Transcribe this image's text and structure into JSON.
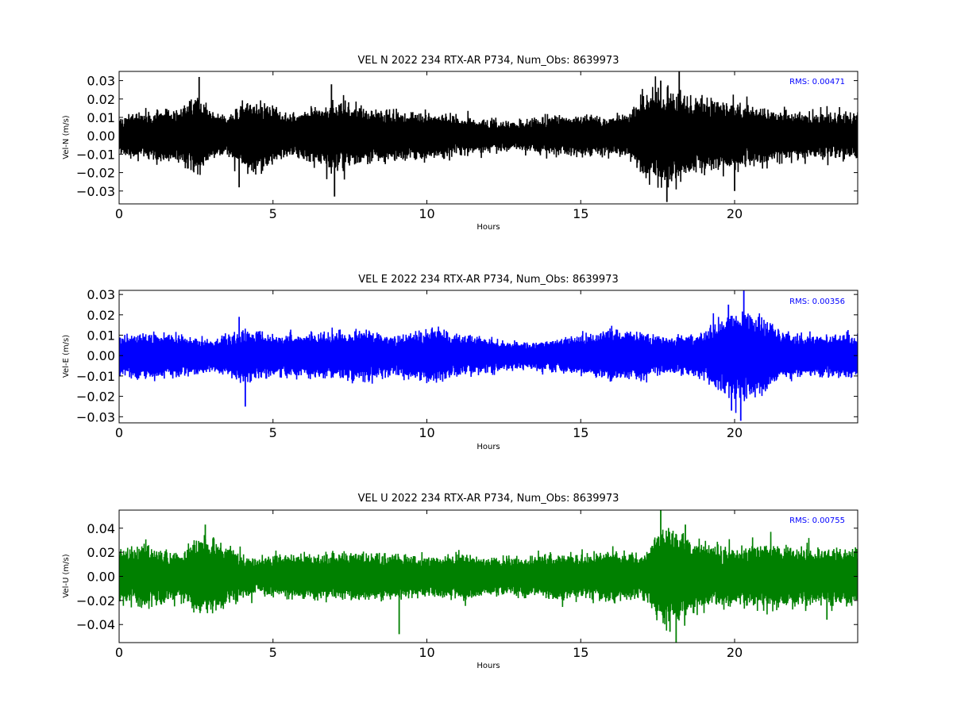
{
  "chart_data": [
    {
      "type": "line",
      "title": "VEL N 2022 234 RTX-AR  P734, Num_Obs: 8639973",
      "xlabel": "Hours",
      "ylabel": "Vel-N (m/s)",
      "xlim": [
        0,
        24
      ],
      "ylim": [
        -0.037,
        0.035
      ],
      "x_ticks": [
        0,
        5,
        10,
        15,
        20
      ],
      "x_tick_labels": [
        "0",
        "5",
        "10",
        "15",
        "20"
      ],
      "y_ticks": [
        -0.03,
        -0.02,
        -0.01,
        0.0,
        0.01,
        0.02,
        0.03
      ],
      "y_tick_labels": [
        "−0.03",
        "−0.02",
        "−0.01",
        "0.00",
        "0.01",
        "0.02",
        "0.03"
      ],
      "color": "#000000",
      "annotation": "RMS:  0.00471",
      "rms": 0.00471,
      "envelope": {
        "hours": [
          0,
          1,
          2,
          2.5,
          3,
          3.5,
          4,
          4.5,
          5,
          5.5,
          6,
          7,
          8,
          9,
          10,
          11,
          12,
          13,
          14,
          15,
          16,
          16.5,
          17,
          17.5,
          18,
          18.5,
          19,
          19.5,
          20,
          21,
          22,
          23,
          24
        ],
        "amplitude": [
          0.011,
          0.014,
          0.016,
          0.024,
          0.014,
          0.011,
          0.019,
          0.021,
          0.017,
          0.012,
          0.014,
          0.02,
          0.015,
          0.014,
          0.013,
          0.011,
          0.009,
          0.008,
          0.012,
          0.011,
          0.011,
          0.013,
          0.022,
          0.028,
          0.028,
          0.023,
          0.02,
          0.019,
          0.019,
          0.015,
          0.013,
          0.013,
          0.013
        ],
        "spikes": [
          [
            2.6,
            0.032
          ],
          [
            7.0,
            -0.033
          ],
          [
            3.9,
            -0.028
          ],
          [
            6.9,
            0.028
          ],
          [
            17.8,
            -0.036
          ],
          [
            18.2,
            0.035
          ],
          [
            20.0,
            -0.03
          ],
          [
            17.6,
            0.03
          ]
        ]
      }
    },
    {
      "type": "line",
      "title": "VEL E 2022 234 RTX-AR  P734, Num_Obs: 8639973",
      "xlabel": "Hours",
      "ylabel": "Vel-E (m/s)",
      "xlim": [
        0,
        24
      ],
      "ylim": [
        -0.033,
        0.032
      ],
      "x_ticks": [
        0,
        5,
        10,
        15,
        20
      ],
      "x_tick_labels": [
        "0",
        "5",
        "10",
        "15",
        "20"
      ],
      "y_ticks": [
        -0.03,
        -0.02,
        -0.01,
        0.0,
        0.01,
        0.02,
        0.03
      ],
      "y_tick_labels": [
        "−0.03",
        "−0.02",
        "−0.01",
        "0.00",
        "0.01",
        "0.02",
        "0.03"
      ],
      "color": "#0000ff",
      "annotation": "RMS:  0.00356",
      "rms": 0.00356,
      "envelope": {
        "hours": [
          0,
          1,
          2,
          3,
          4,
          5,
          6,
          7,
          8,
          9,
          10,
          11,
          12,
          13,
          14,
          15,
          16,
          17,
          18,
          19,
          19.6,
          20.2,
          20.8,
          21.5,
          22,
          23,
          24
        ],
        "amplitude": [
          0.011,
          0.012,
          0.011,
          0.008,
          0.013,
          0.011,
          0.011,
          0.012,
          0.013,
          0.01,
          0.014,
          0.011,
          0.009,
          0.007,
          0.008,
          0.01,
          0.014,
          0.012,
          0.009,
          0.011,
          0.021,
          0.023,
          0.019,
          0.013,
          0.011,
          0.011,
          0.011
        ],
        "spikes": [
          [
            4.1,
            -0.025
          ],
          [
            3.9,
            0.019
          ],
          [
            20.3,
            0.032
          ],
          [
            20.2,
            -0.032
          ],
          [
            19.8,
            0.025
          ],
          [
            19.9,
            -0.027
          ]
        ]
      }
    },
    {
      "type": "line",
      "title": "VEL U 2022 234 RTX-AR  P734, Num_Obs: 8639973",
      "xlabel": "Hours",
      "ylabel": "Vel-U (m/s)",
      "xlim": [
        0,
        24
      ],
      "ylim": [
        -0.055,
        0.055
      ],
      "x_ticks": [
        0,
        5,
        10,
        15,
        20
      ],
      "x_tick_labels": [
        "0",
        "5",
        "10",
        "15",
        "20"
      ],
      "y_ticks": [
        -0.04,
        -0.02,
        0.0,
        0.02,
        0.04
      ],
      "y_tick_labels": [
        "−0.04",
        "−0.02",
        "0.00",
        "0.02",
        "0.04"
      ],
      "color": "#008000",
      "annotation": "RMS:  0.00755",
      "rms": 0.00755,
      "envelope": {
        "hours": [
          0,
          1,
          2,
          2.7,
          3.5,
          4.5,
          5,
          6,
          7,
          8,
          9,
          10,
          11,
          12,
          13,
          14,
          15,
          16,
          17,
          17.6,
          18.2,
          18.8,
          19.5,
          20,
          21,
          22,
          23,
          24
        ],
        "amplitude": [
          0.024,
          0.026,
          0.019,
          0.036,
          0.026,
          0.014,
          0.018,
          0.02,
          0.02,
          0.02,
          0.019,
          0.017,
          0.02,
          0.017,
          0.016,
          0.02,
          0.019,
          0.023,
          0.018,
          0.042,
          0.04,
          0.03,
          0.026,
          0.024,
          0.028,
          0.026,
          0.024,
          0.024
        ],
        "spikes": [
          [
            9.1,
            -0.048
          ],
          [
            2.8,
            0.043
          ],
          [
            17.6,
            0.055
          ],
          [
            18.1,
            -0.055
          ],
          [
            17.9,
            -0.046
          ],
          [
            18.4,
            0.043
          ],
          [
            23.0,
            -0.036
          ]
        ]
      }
    }
  ]
}
